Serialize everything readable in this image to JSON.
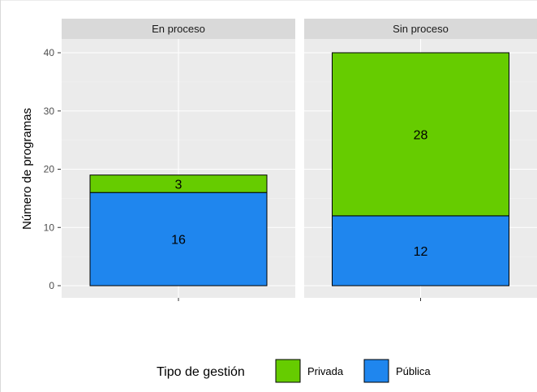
{
  "chart_data": {
    "type": "bar",
    "stacked": true,
    "facets": [
      "En proceso",
      "Sin proceso"
    ],
    "ylabel": "Número de programas",
    "xlabel": "",
    "ylim": [
      0,
      44
    ],
    "yticks": [
      0,
      10,
      20,
      30,
      40
    ],
    "grid": true,
    "legend_title": "Tipo de gestión",
    "legend_position": "bottom",
    "series": [
      {
        "name": "Pública",
        "color": "#1f86ee",
        "values": [
          16,
          12
        ]
      },
      {
        "name": "Privada",
        "color": "#66cc00",
        "values": [
          3,
          28
        ]
      }
    ],
    "legend_order": [
      "Privada",
      "Pública"
    ]
  }
}
